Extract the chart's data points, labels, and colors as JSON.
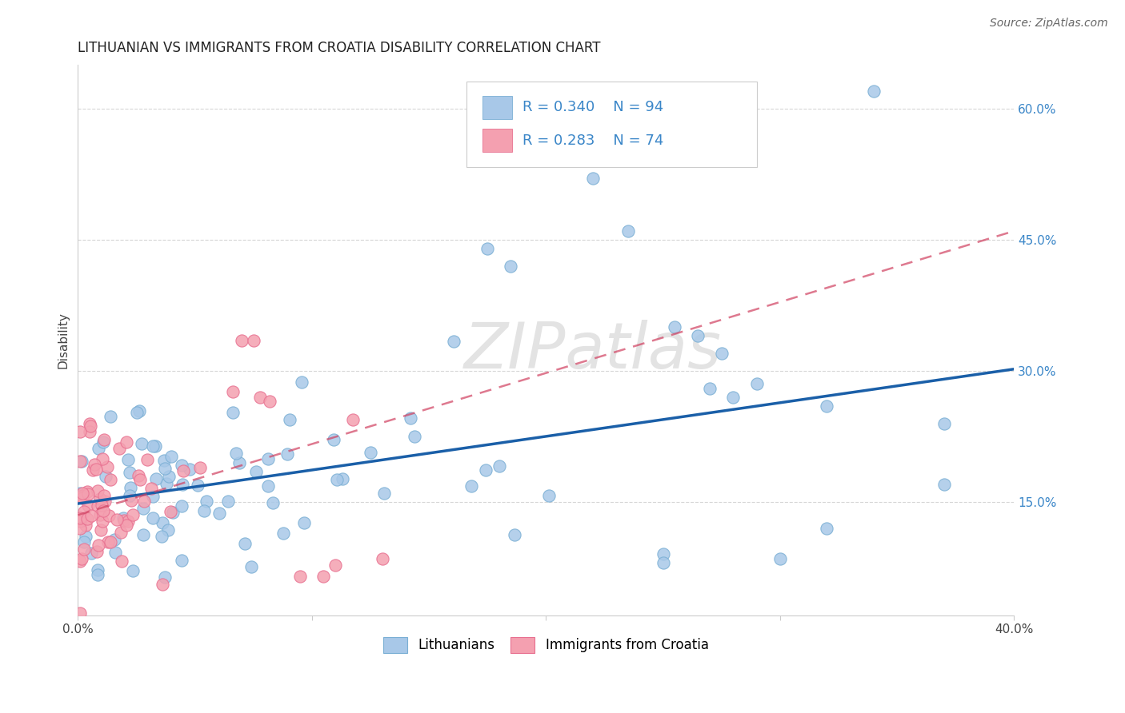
{
  "title": "LITHUANIAN VS IMMIGRANTS FROM CROATIA DISABILITY CORRELATION CHART",
  "source": "Source: ZipAtlas.com",
  "ylabel": "Disability",
  "watermark": "ZIPatlas",
  "xlim": [
    0.0,
    0.4
  ],
  "ylim": [
    0.02,
    0.65
  ],
  "ytick_labels": [
    "15.0%",
    "30.0%",
    "45.0%",
    "60.0%"
  ],
  "ytick_vals": [
    0.15,
    0.3,
    0.45,
    0.6
  ],
  "blue_color": "#a8c8e8",
  "blue_edge_color": "#7aafd4",
  "pink_color": "#f4a0b0",
  "pink_edge_color": "#e87090",
  "blue_line_color": "#1a5fa8",
  "pink_line_color": "#d04060",
  "legend_r1": "R = 0.340",
  "legend_n1": "N = 94",
  "legend_r2": "R = 0.283",
  "legend_n2": "N = 74",
  "blue_trend_x": [
    0.0,
    0.4
  ],
  "blue_trend_y": [
    0.148,
    0.302
  ],
  "pink_trend_x": [
    0.0,
    0.4
  ],
  "pink_trend_y": [
    0.135,
    0.46
  ],
  "grid_color": "#cccccc",
  "background_color": "#ffffff",
  "title_fontsize": 12,
  "tick_color": "#444444",
  "ytick_color": "#3a86c8"
}
